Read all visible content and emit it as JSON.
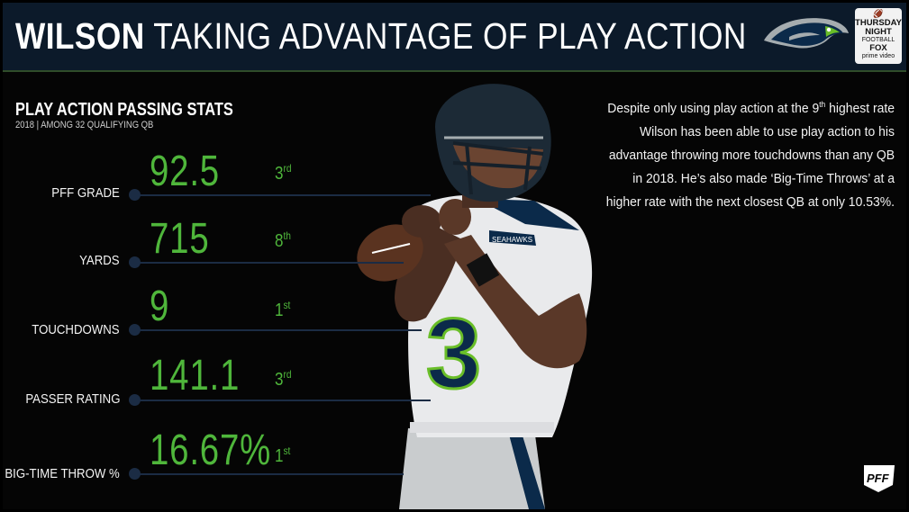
{
  "header": {
    "title_bold": "WILSON",
    "title_rest": "TAKING ADVANTAGE OF PLAY ACTION",
    "tnf_logo": {
      "line1": "THURSDAY",
      "line2": "NIGHT",
      "line3": "FOOTBALL",
      "line4": "FOX",
      "line5": "prime video"
    }
  },
  "stats": {
    "heading": "PLAY ACTION PASSING STATS",
    "subheading": "2018 | AMONG 32 QUALIFYING QB",
    "items": [
      {
        "label": "PFF GRADE",
        "value": "92.5",
        "rank_num": "3",
        "rank_suffix": "rd"
      },
      {
        "label": "YARDS",
        "value": "715",
        "rank_num": "8",
        "rank_suffix": "th"
      },
      {
        "label": "TOUCHDOWNS",
        "value": "9",
        "rank_num": "1",
        "rank_suffix": "st"
      },
      {
        "label": "PASSER RATING",
        "value": "141.1",
        "rank_num": "3",
        "rank_suffix": "rd"
      },
      {
        "label": "BIG-TIME THROW %",
        "value": "16.67%",
        "rank_num": "1",
        "rank_suffix": "st"
      }
    ]
  },
  "description": {
    "part1": "Despite only using play action at the 9",
    "sup": "th",
    "part2": " highest rate Wilson has been able to use play action to his advantage throwing more touchdowns than any QB in 2018. He’s also made ‘Big-Time Throws’ at a higher rate with the next closest QB at only 10.53%."
  },
  "player": {
    "jersey_number": "3",
    "jersey_text": "SEAHAWKS"
  },
  "branding": {
    "pff_logo_text": "PFF"
  },
  "colors": {
    "accent_green": "#4fb63b",
    "header_navy": "#0c1a2a",
    "line_navy": "#1b2c44"
  }
}
